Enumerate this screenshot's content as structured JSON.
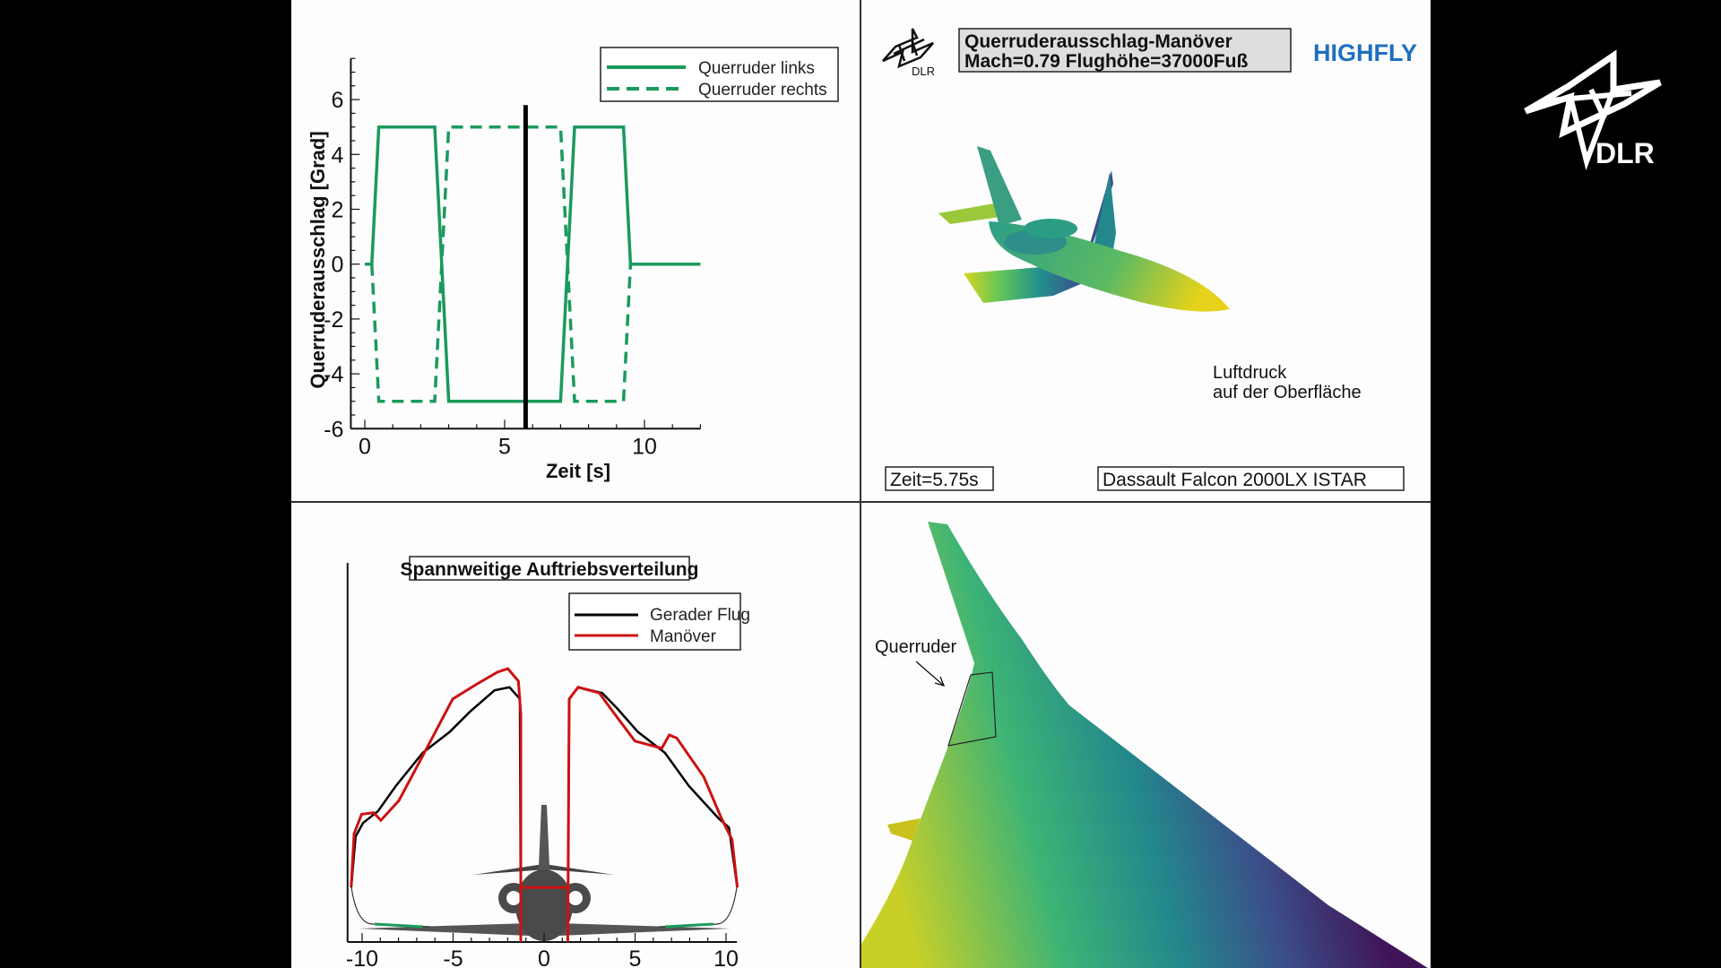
{
  "logos": {
    "dlr_small": "DLR",
    "dlr_large": "DLR",
    "highfly": "HIGHFLY"
  },
  "header": {
    "title_line1": "Querruderausschlag-Manöver",
    "title_line2": "Mach=0.79 Flughöhe=37000Fuß"
  },
  "aircraft_view": {
    "pressure_label_line1": "Luftdruck",
    "pressure_label_line2": "auf der Oberfläche",
    "time_label": "Zeit=5.75s",
    "aircraft_name": "Dassault Falcon 2000LX ISTAR"
  },
  "wing_view": {
    "aileron_label": "Querruder"
  },
  "colors": {
    "green": "#1a9a5c",
    "red": "#cc1111",
    "black": "#000000",
    "highfly_blue": "#1e6fc0"
  },
  "chart_data": [
    {
      "type": "line",
      "title": "",
      "xlabel": "Zeit [s]",
      "ylabel": "Querruderausschlag [Grad]",
      "xlim": [
        0,
        12
      ],
      "ylim": [
        -6,
        7.5
      ],
      "xticks": [
        "0",
        "5",
        "10"
      ],
      "yticks": [
        "-6",
        "-4",
        "-2",
        "0",
        "2",
        "4",
        "6"
      ],
      "xtick_values": [
        0,
        5,
        10
      ],
      "ytick_values": [
        -6,
        -4,
        -2,
        0,
        2,
        4,
        6
      ],
      "legend_position": "top-right",
      "series": [
        {
          "name": "Querruder links",
          "style": "solid",
          "x": [
            0,
            0.25,
            0.5,
            2.5,
            3.0,
            7.0,
            7.5,
            9.25,
            9.5,
            12
          ],
          "y": [
            0,
            0,
            5,
            5,
            -5,
            -5,
            5,
            5,
            0,
            0
          ]
        },
        {
          "name": "Querruder rechts",
          "style": "dashed",
          "x": [
            0.25,
            0.5,
            2.5,
            3.0,
            7.0,
            7.5,
            9.25,
            9.5
          ],
          "y": [
            0,
            -5,
            -5,
            5,
            5,
            -5,
            -5,
            0
          ]
        }
      ],
      "current_time_marker": 5.75,
      "marker_top": 5.8
    },
    {
      "type": "line",
      "title": "Spannweitige Auftriebsverteilung",
      "xlabel": "",
      "ylabel": "",
      "xlim": [
        -10.8,
        10.6
      ],
      "ylim": [
        0,
        1
      ],
      "xticks": [
        "-10",
        "-5",
        "0",
        "5",
        "10"
      ],
      "xtick_values": [
        -10,
        -5,
        0,
        5,
        10
      ],
      "legend_position": "top-right",
      "series": [
        {
          "name": "Gerader Flug",
          "color": "#000000",
          "left": {
            "x": [
              -10.6,
              -10.36,
              -9.95,
              -9.13,
              -8.14,
              -6.67,
              -5.19,
              -4.04,
              -2.72,
              -1.9,
              -1.33,
              -1.28
            ],
            "y": [
              0.144,
              0.278,
              0.314,
              0.345,
              0.412,
              0.499,
              0.554,
              0.609,
              0.664,
              0.672,
              0.641,
              0.0
            ]
          },
          "right": {
            "x": [
              1.3,
              1.38,
              1.87,
              3.19,
              4.0,
              5.16,
              6.64,
              7.95,
              9.59,
              10.16,
              10.41,
              10.62
            ],
            "y": [
              0.0,
              0.641,
              0.672,
              0.657,
              0.617,
              0.554,
              0.499,
              0.412,
              0.326,
              0.302,
              0.215,
              0.144
            ]
          }
        },
        {
          "name": "Manöver",
          "color": "#cc1111",
          "left": {
            "x": [
              -10.6,
              -10.44,
              -10.03,
              -9.37,
              -8.97,
              -7.98,
              -6.67,
              -5.02,
              -3.71,
              -2.56,
              -1.99,
              -1.41,
              -1.28,
              -1.28
            ],
            "y": [
              0.146,
              0.286,
              0.337,
              0.341,
              0.321,
              0.373,
              0.491,
              0.641,
              0.68,
              0.712,
              0.721,
              0.688,
              0.6,
              0.0
            ]
          },
          "right": {
            "x": [
              1.3,
              1.38,
              1.87,
              3.03,
              3.76,
              4.99,
              6.47,
              6.88,
              7.29,
              8.77,
              9.75,
              10.33,
              10.62
            ],
            "y": [
              0.0,
              0.641,
              0.672,
              0.657,
              0.609,
              0.53,
              0.511,
              0.546,
              0.538,
              0.436,
              0.326,
              0.27,
              0.144
            ]
          },
          "center": {
            "x": [
              -1.28,
              1.3
            ],
            "y": [
              0.144,
              0.144
            ]
          }
        }
      ]
    }
  ]
}
